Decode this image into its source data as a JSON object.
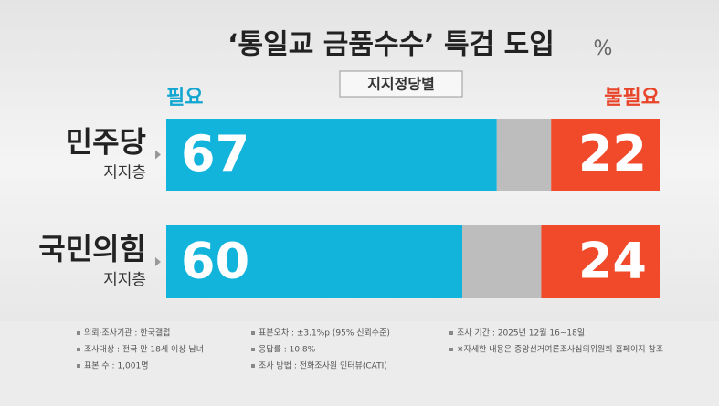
{
  "chart_data": {
    "type": "stacked-bar-horizontal",
    "title": "‘통일교 금품수수’ 특검 도입",
    "unit": "%",
    "subtitle": "지지정당별",
    "categories": [
      "민주당",
      "국민의힘"
    ],
    "category_notes": [
      "지지층",
      "지지층"
    ],
    "series": [
      {
        "name": "필요",
        "color": "#13b4dc",
        "values": [
          67,
          60
        ]
      },
      {
        "color": "#bdbdbd",
        "values": [
          11,
          16
        ]
      },
      {
        "name": "불필요",
        "color": "#f04a2a",
        "values": [
          22,
          24
        ]
      }
    ],
    "xlim": [
      0,
      100
    ],
    "notes": [
      [
        "의뢰·조사기관 : 한국갤럽",
        "조사대상 : 전국 만 18세 이상 남녀",
        "표본 수 : 1,001명"
      ],
      [
        "표본오차 : ±3.1%p (95% 신뢰수준)",
        "응답률 : 10.8%",
        "조사 방법 : 전화조사원 인터뷰(CATI)"
      ],
      [
        "조사 기간 : 2025년 12월 16~18일",
        "※자세한 내용은 중앙선거여론조사심의위원회 홈페이지 참조"
      ]
    ]
  }
}
